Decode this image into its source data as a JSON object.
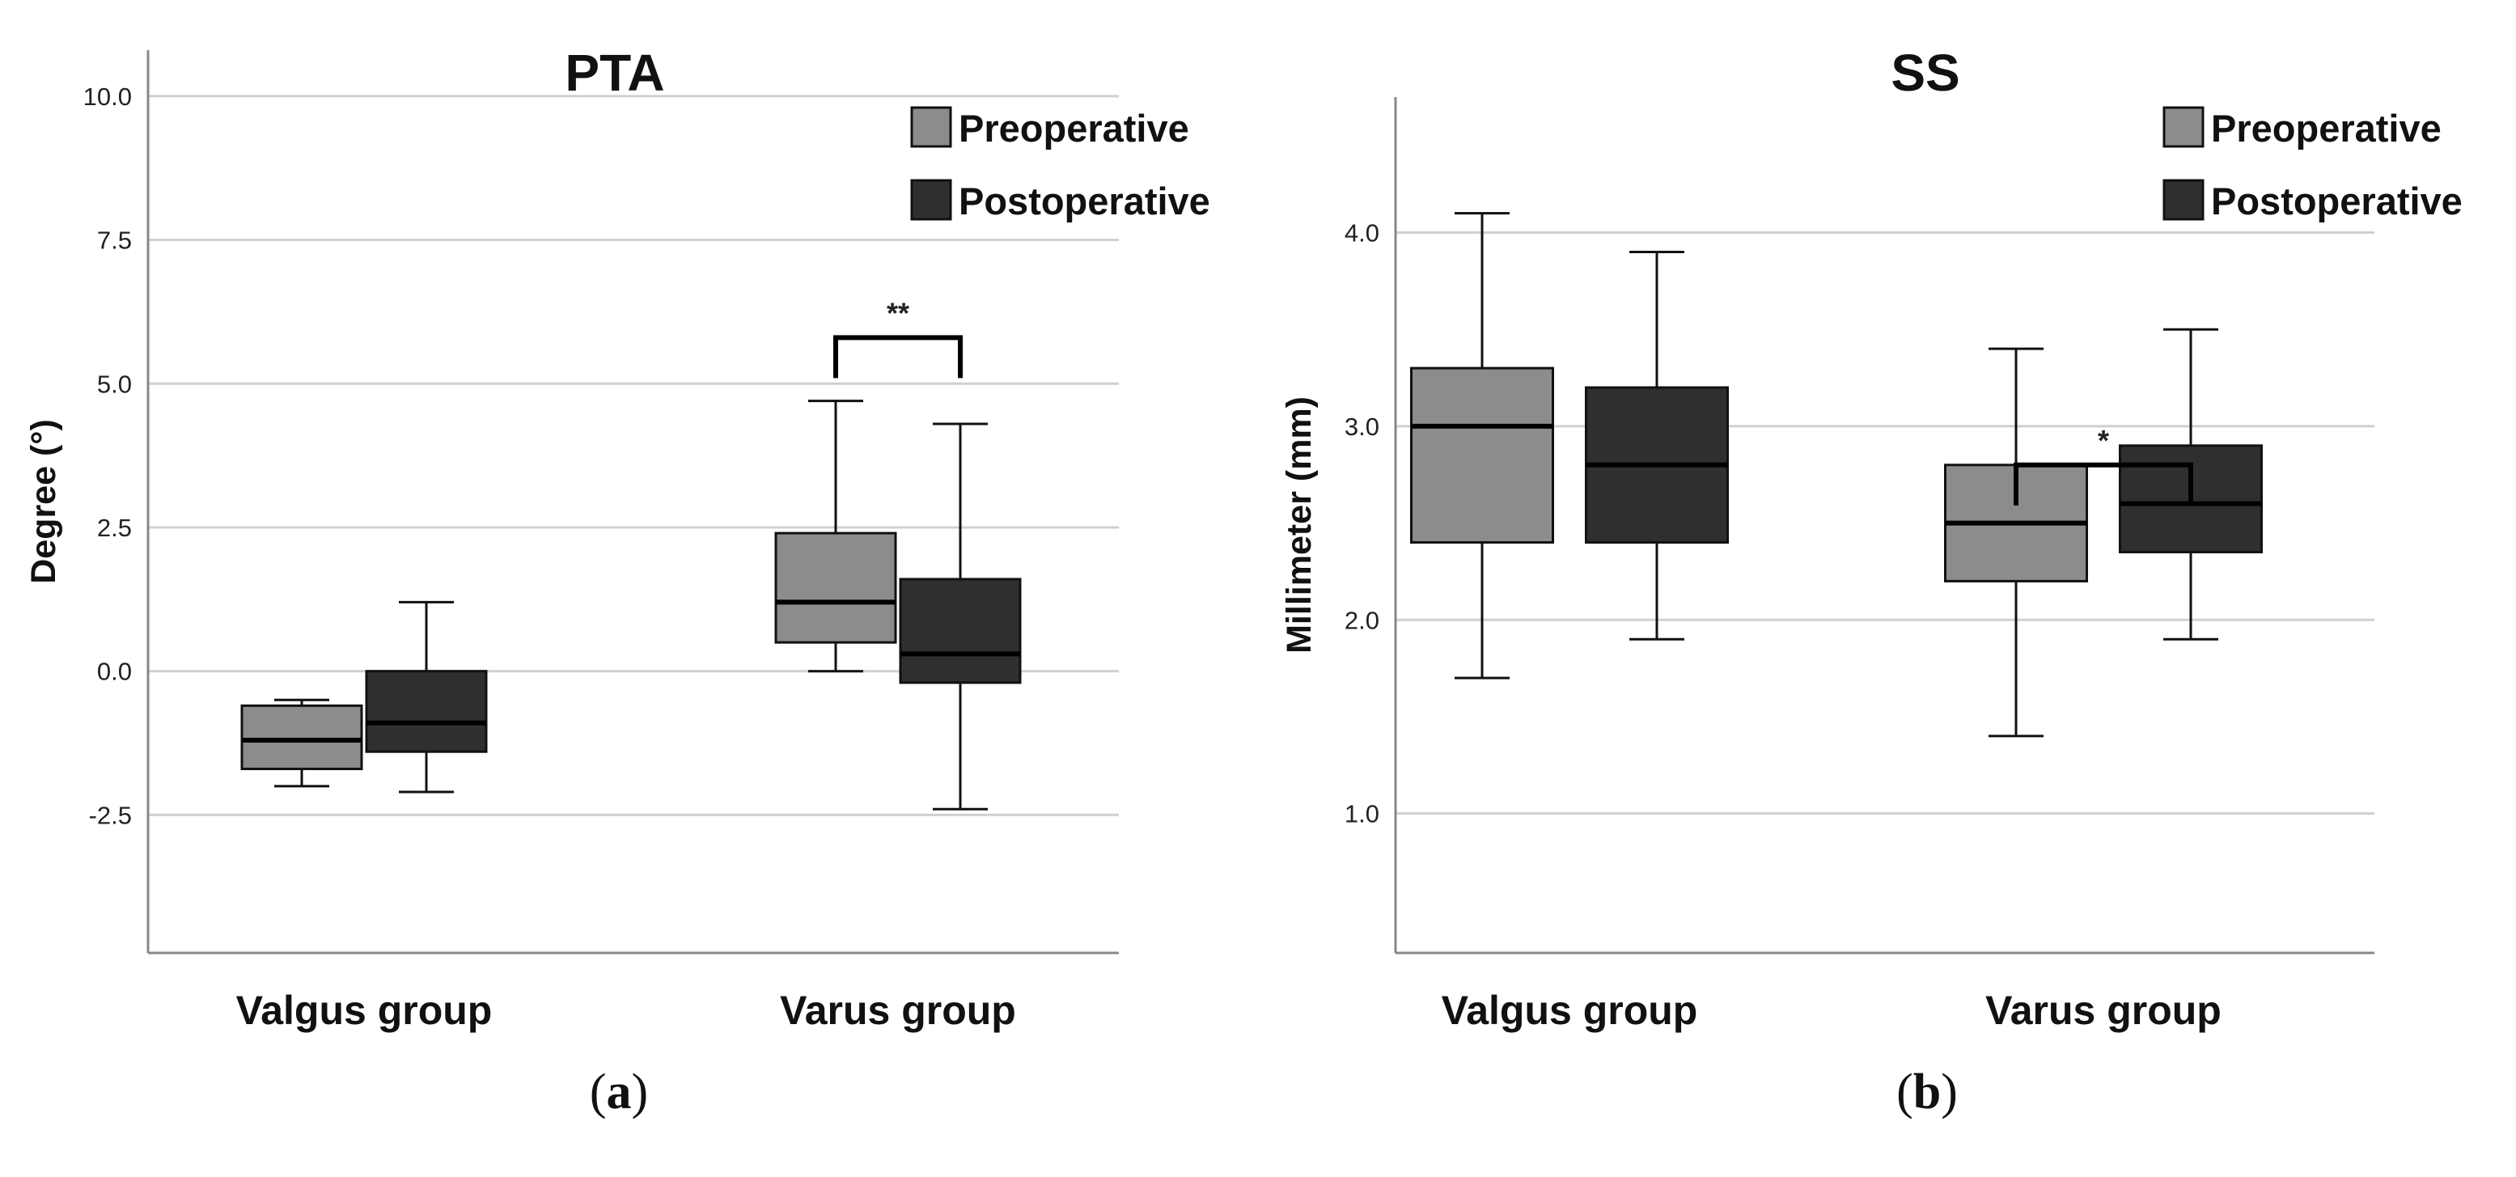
{
  "colors": {
    "preoperative": "#8c8c8c",
    "postoperative": "#2f2f2f",
    "gridline": "#d0d0d0",
    "axis": "#888888",
    "stroke": "#111111"
  },
  "chart_data": [
    {
      "type": "box",
      "panel_label": "a",
      "title": "PTA",
      "ylabel": "Degree (°)",
      "xlabel": "",
      "ylim": [
        -4.9,
        10.8
      ],
      "yticks": [
        "10.0",
        "7.5",
        "5.0",
        "2.5",
        "0.0",
        "-2.5"
      ],
      "ytick_values": [
        10,
        7.5,
        5,
        2.5,
        0,
        -2.5
      ],
      "grid": true,
      "legend_position": "top-right",
      "categories": [
        "Valgus group",
        "Varus group"
      ],
      "series": [
        {
          "name": "Preoperative",
          "boxes": [
            {
              "min": -2.0,
              "q1": -1.7,
              "median": -1.2,
              "q3": -0.6,
              "max": -0.5
            },
            {
              "min": 0.0,
              "q1": 0.5,
              "median": 1.2,
              "q3": 2.4,
              "max": 4.7
            }
          ]
        },
        {
          "name": "Postoperative",
          "boxes": [
            {
              "min": -2.1,
              "q1": -1.4,
              "median": -0.9,
              "q3": 0.0,
              "max": 1.2
            },
            {
              "min": -2.4,
              "q1": -0.2,
              "median": 0.3,
              "q3": 1.6,
              "max": 4.3
            }
          ]
        }
      ],
      "annotations": [
        {
          "category": "Varus group",
          "label": "**",
          "y": 5.8
        }
      ]
    },
    {
      "type": "box",
      "panel_label": "b",
      "title": "SS",
      "ylabel": "Millimeter (mm)",
      "xlabel": "",
      "ylim": [
        0.28,
        4.7
      ],
      "yticks": [
        "4.0",
        "3.0",
        "2.0",
        "1.0"
      ],
      "ytick_values": [
        4,
        3,
        2,
        1
      ],
      "grid": true,
      "legend_position": "top-right",
      "categories": [
        "Valgus group",
        "Varus group"
      ],
      "series": [
        {
          "name": "Preoperative",
          "boxes": [
            {
              "min": 1.7,
              "q1": 2.4,
              "median": 3.0,
              "q3": 3.3,
              "max": 4.1
            },
            {
              "min": 1.4,
              "q1": 2.2,
              "median": 2.5,
              "q3": 2.8,
              "max": 3.4
            }
          ]
        },
        {
          "name": "Postoperative",
          "boxes": [
            {
              "min": 1.9,
              "q1": 2.4,
              "median": 2.8,
              "q3": 3.2,
              "max": 3.9
            },
            {
              "min": 1.9,
              "q1": 2.35,
              "median": 2.6,
              "q3": 2.9,
              "max": 3.5
            }
          ]
        }
      ],
      "annotations": [
        {
          "category": "Varus group",
          "label": "*",
          "y": 2.8
        }
      ]
    }
  ]
}
